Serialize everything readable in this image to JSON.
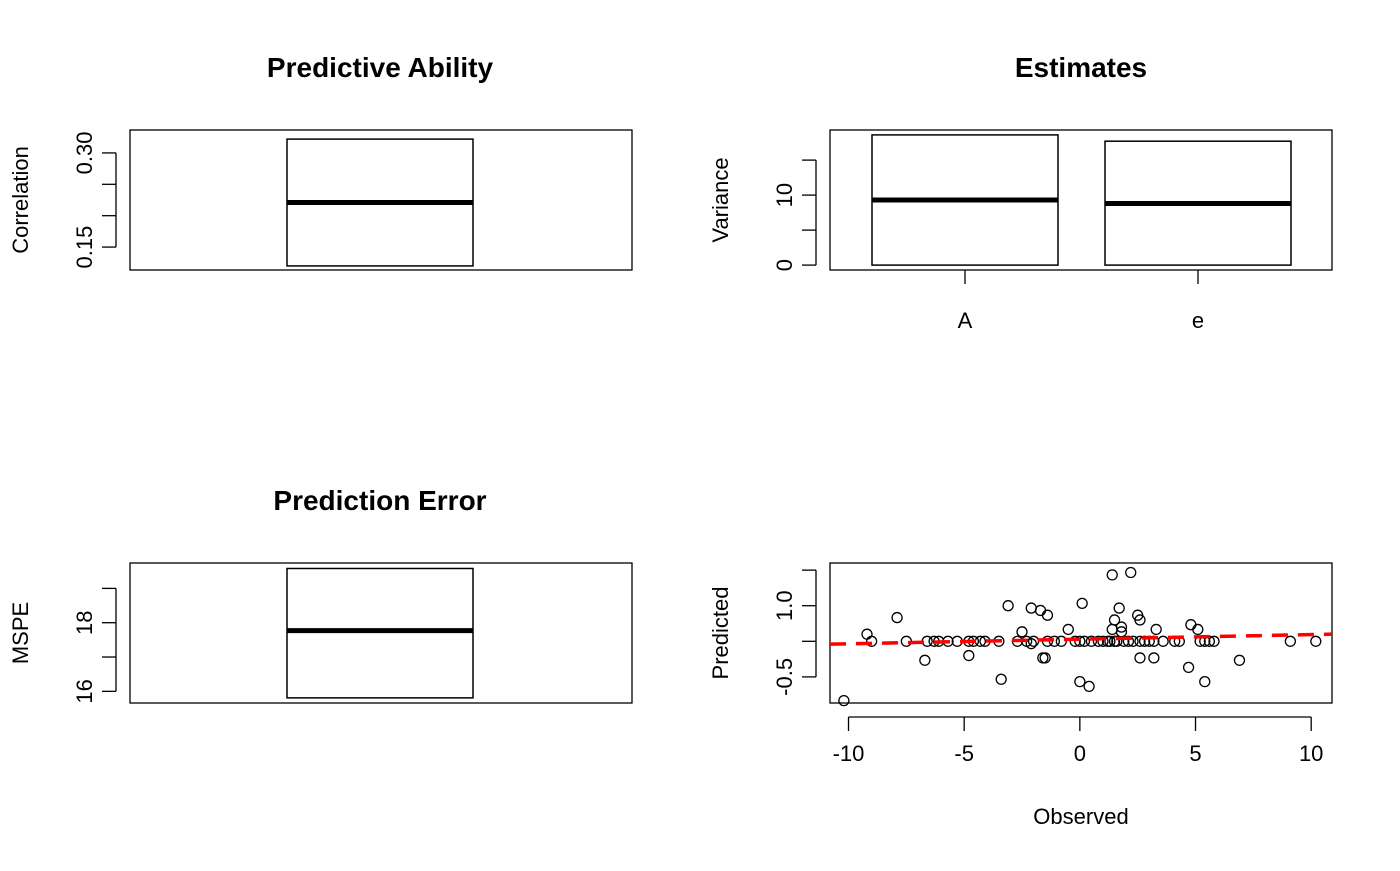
{
  "chart_data": [
    {
      "type": "boxplot",
      "title": "Predictive Ability",
      "xlabel": "",
      "ylabel": "Correlation",
      "ylim": [
        0.1135,
        0.3365
      ],
      "yticks": [
        0.15,
        0.2,
        0.25,
        0.3
      ],
      "ytick_labels": [
        "0.15",
        "",
        "",
        "0.30"
      ],
      "boxes": [
        {
          "label": "",
          "lower": 0.12,
          "median": 0.221,
          "upper": 0.322
        }
      ]
    },
    {
      "type": "boxplot",
      "title": "Estimates",
      "xlabel": "",
      "ylabel": "Variance",
      "ylim": [
        -0.7,
        19.3
      ],
      "yticks": [
        0,
        5,
        10,
        15
      ],
      "ytick_labels": [
        "0",
        "",
        "10",
        ""
      ],
      "boxes": [
        {
          "label": "A",
          "lower": 0.0,
          "median": 9.3,
          "upper": 18.6
        },
        {
          "label": "e",
          "lower": 0.0,
          "median": 8.8,
          "upper": 17.7
        }
      ]
    },
    {
      "type": "boxplot",
      "title": "Prediction Error",
      "xlabel": "",
      "ylabel": "MSPE",
      "ylim": [
        15.66,
        19.74
      ],
      "yticks": [
        16,
        17,
        18,
        19
      ],
      "ytick_labels": [
        "16",
        "",
        "18",
        ""
      ],
      "boxes": [
        {
          "label": "",
          "lower": 15.81,
          "median": 17.77,
          "upper": 19.58
        }
      ]
    },
    {
      "type": "scatter",
      "title": "",
      "xlabel": "Observed",
      "ylabel": "Predicted",
      "xlim": [
        -10.8,
        10.9
      ],
      "ylim": [
        -1.05,
        1.9
      ],
      "xticks": [
        -10,
        -5,
        0,
        5,
        10
      ],
      "xtick_labels": [
        "-10",
        "-5",
        "0",
        "5",
        "10"
      ],
      "yticks": [
        -0.5,
        0.25,
        1.0,
        1.75
      ],
      "ytick_labels": [
        "-0.5",
        "",
        "1.0",
        ""
      ],
      "points": [
        [
          -10.2,
          -1.0
        ],
        [
          -9.2,
          0.4
        ],
        [
          -9.0,
          0.25
        ],
        [
          -7.9,
          0.75
        ],
        [
          -7.5,
          0.25
        ],
        [
          -6.7,
          -0.15
        ],
        [
          -6.6,
          0.25
        ],
        [
          -6.3,
          0.25
        ],
        [
          -6.1,
          0.25
        ],
        [
          -5.7,
          0.25
        ],
        [
          -5.3,
          0.25
        ],
        [
          -4.8,
          0.25
        ],
        [
          -4.8,
          -0.05
        ],
        [
          -4.6,
          0.25
        ],
        [
          -4.3,
          0.25
        ],
        [
          -4.1,
          0.25
        ],
        [
          -3.5,
          0.25
        ],
        [
          -3.4,
          -0.55
        ],
        [
          -3.1,
          1.0
        ],
        [
          -2.7,
          0.25
        ],
        [
          -2.5,
          0.45
        ],
        [
          -2.3,
          0.25
        ],
        [
          -2.1,
          0.2
        ],
        [
          -2.0,
          0.25
        ],
        [
          -2.1,
          0.95
        ],
        [
          -1.7,
          0.9
        ],
        [
          -1.6,
          -0.1
        ],
        [
          -1.5,
          -0.1
        ],
        [
          -1.4,
          0.25
        ],
        [
          -1.4,
          0.8
        ],
        [
          -1.1,
          0.25
        ],
        [
          -0.8,
          0.25
        ],
        [
          -0.5,
          0.5
        ],
        [
          -0.2,
          0.25
        ],
        [
          0.0,
          -0.6
        ],
        [
          0.0,
          0.25
        ],
        [
          0.1,
          1.05
        ],
        [
          0.2,
          0.25
        ],
        [
          0.4,
          -0.7
        ],
        [
          0.5,
          0.25
        ],
        [
          0.8,
          0.25
        ],
        [
          1.0,
          0.25
        ],
        [
          1.2,
          0.25
        ],
        [
          1.3,
          0.25
        ],
        [
          1.4,
          0.5
        ],
        [
          1.4,
          1.65
        ],
        [
          1.5,
          0.7
        ],
        [
          1.5,
          0.25
        ],
        [
          1.6,
          0.25
        ],
        [
          1.7,
          0.95
        ],
        [
          1.8,
          0.45
        ],
        [
          1.8,
          0.55
        ],
        [
          1.9,
          0.25
        ],
        [
          2.1,
          0.25
        ],
        [
          2.2,
          1.7
        ],
        [
          2.3,
          0.25
        ],
        [
          2.5,
          0.8
        ],
        [
          2.6,
          0.7
        ],
        [
          2.6,
          0.25
        ],
        [
          2.6,
          -0.1
        ],
        [
          2.8,
          0.25
        ],
        [
          3.0,
          0.25
        ],
        [
          3.2,
          0.25
        ],
        [
          3.2,
          -0.1
        ],
        [
          3.3,
          0.5
        ],
        [
          3.6,
          0.25
        ],
        [
          4.1,
          0.25
        ],
        [
          4.3,
          0.25
        ],
        [
          4.7,
          -0.3
        ],
        [
          4.8,
          0.6
        ],
        [
          5.1,
          0.5
        ],
        [
          5.2,
          0.25
        ],
        [
          5.4,
          0.25
        ],
        [
          5.4,
          -0.6
        ],
        [
          5.6,
          0.25
        ],
        [
          5.8,
          0.25
        ],
        [
          6.9,
          -0.15
        ],
        [
          9.1,
          0.25
        ],
        [
          10.2,
          0.25
        ]
      ],
      "fit_line": {
        "x": [
          -10.8,
          10.9
        ],
        "y": [
          0.19,
          0.4
        ]
      }
    }
  ],
  "colors": {
    "fit_line": "#ff0000",
    "axis": "#000000",
    "median": "#000000"
  }
}
